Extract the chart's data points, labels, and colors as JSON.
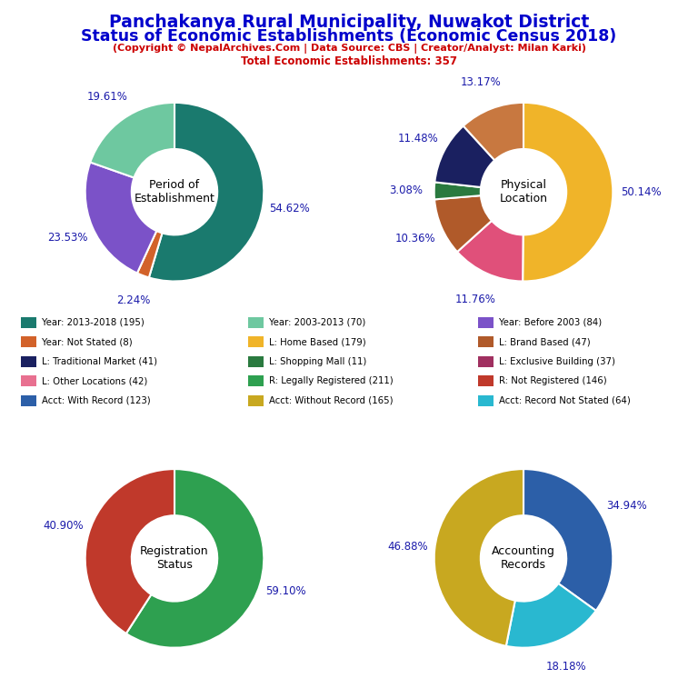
{
  "title_line1": "Panchakanya Rural Municipality, Nuwakot District",
  "title_line2": "Status of Economic Establishments (Economic Census 2018)",
  "subtitle": "(Copyright © NepalArchives.Com | Data Source: CBS | Creator/Analyst: Milan Karki)",
  "subtitle2": "Total Economic Establishments: 357",
  "title_color": "#0000CC",
  "subtitle_color": "#CC0000",
  "donut1": {
    "label": "Period of\nEstablishment",
    "values": [
      195,
      8,
      84,
      70
    ],
    "percents": [
      "54.62%",
      "2.24%",
      "23.53%",
      "19.61%"
    ],
    "colors": [
      "#1a7a6e",
      "#d2622a",
      "#7b52c8",
      "#6ec8a0"
    ]
  },
  "donut2": {
    "label": "Physical\nLocation",
    "values": [
      179,
      47,
      37,
      11,
      41,
      42
    ],
    "percents": [
      "50.14%",
      "11.76%",
      "10.36%",
      "3.08%",
      "11.48%",
      "13.17%"
    ],
    "colors": [
      "#f0b429",
      "#e0507a",
      "#b05a2a",
      "#2a7a3f",
      "#1a2060",
      "#c87840"
    ]
  },
  "donut3": {
    "label": "Registration\nStatus",
    "values": [
      211,
      146
    ],
    "percents": [
      "59.10%",
      "40.90%"
    ],
    "colors": [
      "#2ea050",
      "#c0392b"
    ]
  },
  "donut4": {
    "label": "Accounting\nRecords",
    "values": [
      123,
      64,
      165
    ],
    "percents": [
      "34.94%",
      "18.18%",
      "46.88%"
    ],
    "colors": [
      "#2c5fa8",
      "#29b8d0",
      "#c8a820"
    ]
  },
  "legend_items": [
    {
      "label": "Year: 2013-2018 (195)",
      "color": "#1a7a6e"
    },
    {
      "label": "Year: 2003-2013 (70)",
      "color": "#6ec8a0"
    },
    {
      "label": "Year: Before 2003 (84)",
      "color": "#7b52c8"
    },
    {
      "label": "Year: Not Stated (8)",
      "color": "#d2622a"
    },
    {
      "label": "L: Home Based (179)",
      "color": "#f0b429"
    },
    {
      "label": "L: Brand Based (47)",
      "color": "#b05a2a"
    },
    {
      "label": "L: Traditional Market (41)",
      "color": "#1a2060"
    },
    {
      "label": "L: Shopping Mall (11)",
      "color": "#2a7a3f"
    },
    {
      "label": "L: Exclusive Building (37)",
      "color": "#a03060"
    },
    {
      "label": "L: Other Locations (42)",
      "color": "#e87090"
    },
    {
      "label": "R: Legally Registered (211)",
      "color": "#2ea050"
    },
    {
      "label": "R: Not Registered (146)",
      "color": "#c0392b"
    },
    {
      "label": "Acct: With Record (123)",
      "color": "#2c5fa8"
    },
    {
      "label": "Acct: Without Record (165)",
      "color": "#c8a820"
    },
    {
      "label": "Acct: Record Not Stated (64)",
      "color": "#29b8d0"
    }
  ]
}
